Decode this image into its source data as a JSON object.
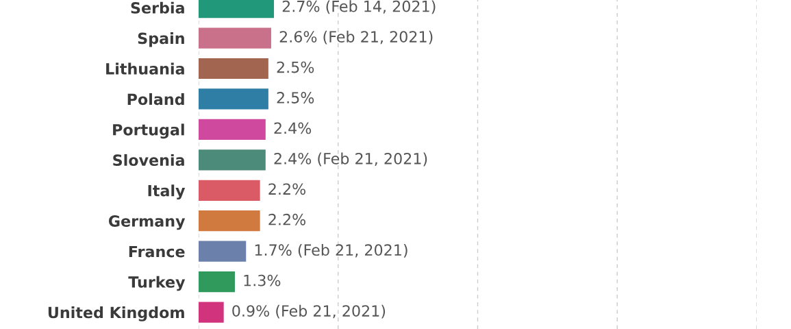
{
  "chart_data": {
    "type": "bar",
    "orientation": "horizontal",
    "categories": [
      "Serbia",
      "Spain",
      "Lithuania",
      "Poland",
      "Portugal",
      "Slovenia",
      "Italy",
      "Germany",
      "France",
      "Turkey",
      "United Kingdom"
    ],
    "values": [
      2.7,
      2.6,
      2.5,
      2.5,
      2.4,
      2.4,
      2.2,
      2.2,
      1.7,
      1.3,
      0.9
    ],
    "colors": [
      "#22987a",
      "#c9708a",
      "#a2654f",
      "#2f7ea6",
      "#cf4a9f",
      "#4c8b7a",
      "#da5a66",
      "#d17a40",
      "#6b80ab",
      "#2f9a5b",
      "#d1347c"
    ],
    "value_labels": [
      "2.7% (Feb 14, 2021)",
      "2.6% (Feb 21, 2021)",
      "2.5%",
      "2.5%",
      "2.4%",
      "2.4% (Feb 21, 2021)",
      "2.2%",
      "2.2%",
      "1.7% (Feb 21, 2021)",
      "1.3%",
      "0.9% (Feb 21, 2021)"
    ],
    "xlim": [
      0,
      20
    ],
    "xticks": [
      {
        "value": 0,
        "label": null
      },
      {
        "value": 5,
        "label": null
      },
      {
        "value": 10,
        "label": null
      },
      {
        "value": 15,
        "label": null
      },
      {
        "value": 20,
        "label": null
      }
    ],
    "grid": "x"
  }
}
